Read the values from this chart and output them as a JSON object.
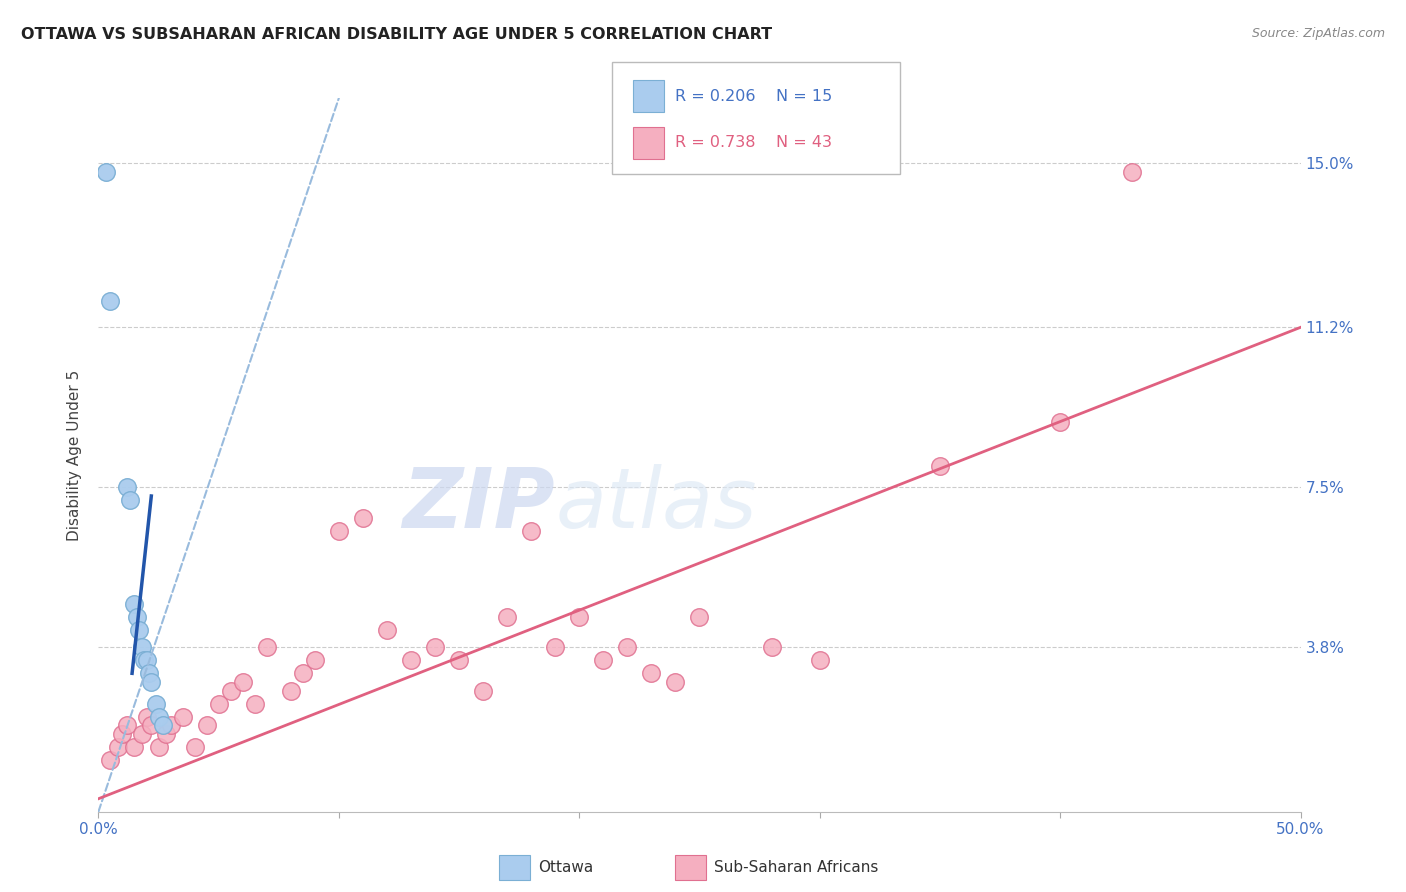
{
  "title": "OTTAWA VS SUBSAHARAN AFRICAN DISABILITY AGE UNDER 5 CORRELATION CHART",
  "source": "Source: ZipAtlas.com",
  "ylabel": "Disability Age Under 5",
  "xlim": [
    0,
    50
  ],
  "ylim": [
    0,
    16.5
  ],
  "ytick_vals": [
    3.8,
    7.5,
    11.2,
    15.0
  ],
  "xtick_vals": [
    0,
    10,
    20,
    30,
    40,
    50
  ],
  "xtick_labels": [
    "0.0%",
    "",
    "",
    "",
    "",
    "50.0%"
  ],
  "ytick_labels": [
    "3.8%",
    "7.5%",
    "11.2%",
    "15.0%"
  ],
  "ottawa_color": "#aaccee",
  "ottawa_edge": "#7bafd4",
  "ottawa_line_solid_color": "#2255aa",
  "ottawa_line_dash_color": "#99bbdd",
  "ssa_color": "#f5afc0",
  "ssa_edge": "#e07090",
  "ssa_line_color": "#e06080",
  "axis_label_color": "#4472c4",
  "grid_color": "#cccccc",
  "watermark_color": "#ddeeff",
  "background_color": "#ffffff",
  "legend_r1": "R = 0.206",
  "legend_n1": "N = 15",
  "legend_r2": "R = 0.738",
  "legend_n2": "N = 43",
  "ottawa_x": [
    0.3,
    0.5,
    1.2,
    1.3,
    1.5,
    1.6,
    1.7,
    1.8,
    1.9,
    2.0,
    2.1,
    2.2,
    2.4,
    2.5,
    2.7
  ],
  "ottawa_y": [
    14.8,
    11.8,
    7.5,
    7.2,
    4.8,
    4.5,
    4.2,
    3.8,
    3.5,
    3.5,
    3.2,
    3.0,
    2.5,
    2.2,
    2.0
  ],
  "ssa_x": [
    0.5,
    0.8,
    1.0,
    1.2,
    1.5,
    1.8,
    2.0,
    2.2,
    2.5,
    2.8,
    3.0,
    3.5,
    4.0,
    4.5,
    5.0,
    5.5,
    6.0,
    6.5,
    7.0,
    8.0,
    8.5,
    9.0,
    10.0,
    11.0,
    12.0,
    13.0,
    14.0,
    15.0,
    16.0,
    17.0,
    18.0,
    19.0,
    20.0,
    21.0,
    22.0,
    23.0,
    24.0,
    25.0,
    28.0,
    30.0,
    35.0,
    40.0,
    43.0
  ],
  "ssa_y": [
    1.2,
    1.5,
    1.8,
    2.0,
    1.5,
    1.8,
    2.2,
    2.0,
    1.5,
    1.8,
    2.0,
    2.2,
    1.5,
    2.0,
    2.5,
    2.8,
    3.0,
    2.5,
    3.8,
    2.8,
    3.2,
    3.5,
    6.5,
    6.8,
    4.2,
    3.5,
    3.8,
    3.5,
    2.8,
    4.5,
    6.5,
    3.8,
    4.5,
    3.5,
    3.8,
    3.2,
    3.0,
    4.5,
    3.8,
    3.5,
    8.0,
    9.0,
    14.8
  ],
  "ssa_line_x0": 0.0,
  "ssa_line_y0": 0.3,
  "ssa_line_x1": 50.0,
  "ssa_line_y1": 11.2,
  "ottawa_solid_x0": 1.4,
  "ottawa_solid_y0": 3.2,
  "ottawa_solid_x1": 2.2,
  "ottawa_solid_y1": 7.3,
  "ottawa_dash_x0": 0.0,
  "ottawa_dash_y0": 0.0,
  "ottawa_dash_x1": 10.0,
  "ottawa_dash_y1": 16.5
}
